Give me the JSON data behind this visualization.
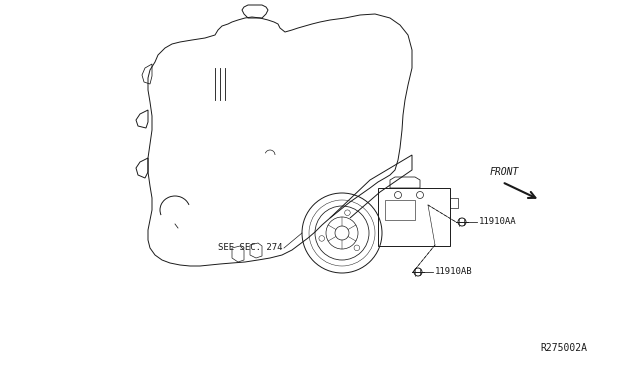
{
  "bg_color": "#ffffff",
  "line_color": "#1a1a1a",
  "label_11910AA": "11910AA",
  "label_11910AB": "11910AB",
  "label_see_sec": "SEE SEC. 274",
  "label_front": "FRONT",
  "label_ref": "R275002A"
}
